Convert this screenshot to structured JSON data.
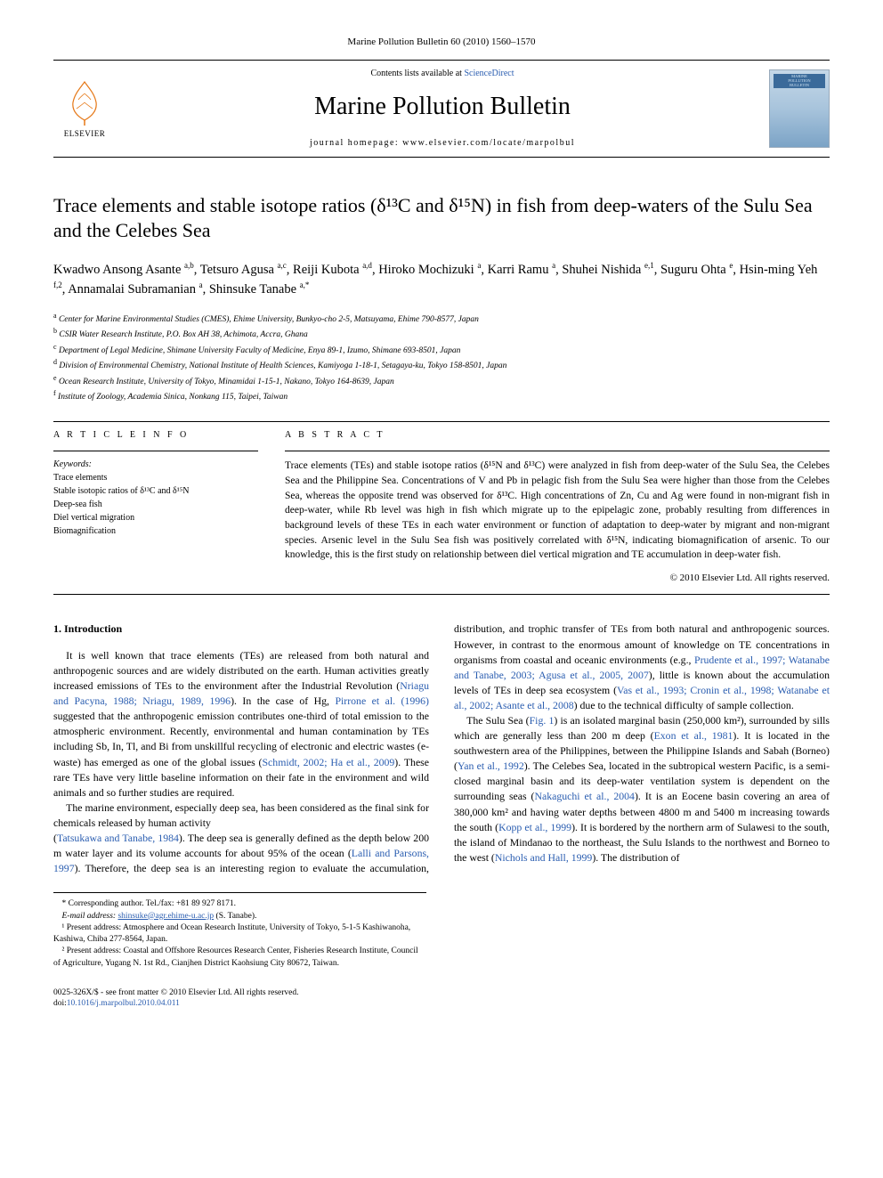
{
  "journal_header": "Marine Pollution Bulletin 60 (2010) 1560–1570",
  "header": {
    "contents_prefix": "Contents lists available at ",
    "contents_link": "ScienceDirect",
    "journal_name": "Marine Pollution Bulletin",
    "homepage": "journal homepage: www.elsevier.com/locate/marpolbul",
    "publisher_name": "ELSEVIER",
    "cover_title_l1": "MARINE",
    "cover_title_l2": "POLLUTION",
    "cover_title_l3": "BULLETIN"
  },
  "title": "Trace elements and stable isotope ratios (δ¹³C and δ¹⁵N) in fish from deep-waters of the Sulu Sea and the Celebes Sea",
  "authors_html": "Kwadwo Ansong Asante <sup>a,b</sup>, Tetsuro Agusa <sup>a,c</sup>, Reiji Kubota <sup>a,d</sup>, Hiroko Mochizuki <sup>a</sup>, Karri Ramu <sup>a</sup>, Shuhei Nishida <sup>e,1</sup>, Suguru Ohta <sup>e</sup>, Hsin-ming Yeh <sup>f,2</sup>, Annamalai Subramanian <sup>a</sup>, Shinsuke Tanabe <sup>a,*</sup>",
  "affiliations": [
    {
      "sup": "a",
      "text": "Center for Marine Environmental Studies (CMES), Ehime University, Bunkyo-cho 2-5, Matsuyama, Ehime 790-8577, Japan"
    },
    {
      "sup": "b",
      "text": "CSIR Water Research Institute, P.O. Box AH 38, Achimota, Accra, Ghana"
    },
    {
      "sup": "c",
      "text": "Department of Legal Medicine, Shimane University Faculty of Medicine, Enya 89-1, Izumo, Shimane 693-8501, Japan"
    },
    {
      "sup": "d",
      "text": "Division of Environmental Chemistry, National Institute of Health Sciences, Kamiyoga 1-18-1, Setagaya-ku, Tokyo 158-8501, Japan"
    },
    {
      "sup": "e",
      "text": "Ocean Research Institute, University of Tokyo, Minamidai 1-15-1, Nakano, Tokyo 164-8639, Japan"
    },
    {
      "sup": "f",
      "text": "Institute of Zoology, Academia Sinica, Nonkang 115, Taipei, Taiwan"
    }
  ],
  "article_info": {
    "header": "A R T I C L E   I N F O",
    "keywords_label": "Keywords:",
    "keywords": [
      "Trace elements",
      "Stable isotopic ratios of δ¹³C and δ¹⁵N",
      "Deep-sea fish",
      "Diel vertical migration",
      "Biomagnification"
    ]
  },
  "abstract": {
    "header": "A B S T R A C T",
    "text": "Trace elements (TEs) and stable isotope ratios (δ¹⁵N and δ¹³C) were analyzed in fish from deep-water of the Sulu Sea, the Celebes Sea and the Philippine Sea. Concentrations of V and Pb in pelagic fish from the Sulu Sea were higher than those from the Celebes Sea, whereas the opposite trend was observed for δ¹³C. High concentrations of Zn, Cu and Ag were found in non-migrant fish in deep-water, while Rb level was high in fish which migrate up to the epipelagic zone, probably resulting from differences in background levels of these TEs in each water environment or function of adaptation to deep-water by migrant and non-migrant species. Arsenic level in the Sulu Sea fish was positively correlated with δ¹⁵N, indicating biomagnification of arsenic. To our knowledge, this is the first study on relationship between diel vertical migration and TE accumulation in deep-water fish.",
    "copyright": "© 2010 Elsevier Ltd. All rights reserved."
  },
  "section_heading": "1. Introduction",
  "body": {
    "p1a": "It is well known that trace elements (TEs) are released from both natural and anthropogenic sources and are widely distributed on the earth. Human activities greatly increased emissions of TEs to the environment after the Industrial Revolution (",
    "r1": "Nriagu and Pacyna, 1988; Nriagu, 1989, 1996",
    "p1b": "). In the case of Hg, ",
    "r2": "Pirrone et al. (1996)",
    "p1c": " suggested that the anthropogenic emission contributes one-third of total emission to the atmospheric environment. Recently, environmental and human contamination by TEs including Sb, In, Tl, and Bi from unskillful recycling of electronic and electric wastes (e-waste) has emerged as one of the global issues (",
    "r3": "Schmidt, 2002; Ha et al., 2009",
    "p1d": "). These rare TEs have very little baseline information on their fate in the environment and wild animals and so further studies are required.",
    "p2": "The marine environment, especially deep sea, has been considered as the final sink for chemicals released by human activity",
    "p3a_open": "(",
    "r4": "Tatsukawa and Tanabe, 1984",
    "p3a": "). The deep sea is generally defined as the depth below 200 m water layer and its volume accounts for about 95% of the ocean (",
    "r5": "Lalli and Parsons, 1997",
    "p3b": "). Therefore, the deep sea is an interesting region to evaluate the accumulation, distribution, and trophic transfer of TEs from both natural and anthropogenic sources. However, in contrast to the enormous amount of knowledge on TE concentrations in organisms from coastal and oceanic environments (e.g., ",
    "r6": "Prudente et al., 1997; Watanabe and Tanabe, 2003; Agusa et al., 2005, 2007",
    "p3c": "), little is known about the accumulation levels of TEs in deep sea ecosystem (",
    "r7": "Vas et al., 1993; Cronin et al., 1998; Watanabe et al., 2002; Asante et al., 2008",
    "p3d": ") due to the technical difficulty of sample collection.",
    "p4a": "The Sulu Sea (",
    "r8": "Fig. 1",
    "p4b": ") is an isolated marginal basin (250,000 km²), surrounded by sills which are generally less than 200 m deep (",
    "r9": "Exon et al., 1981",
    "p4c": "). It is located in the southwestern area of the Philippines, between the Philippine Islands and Sabah (Borneo) (",
    "r10": "Yan et al., 1992",
    "p4d": "). The Celebes Sea, located in the subtropical western Pacific, is a semi-closed marginal basin and its deep-water ventilation system is dependent on the surrounding seas (",
    "r11": "Nakaguchi et al., 2004",
    "p4e": "). It is an Eocene basin covering an area of 380,000 km² and having water depths between 4800 m and 5400 m increasing towards the south (",
    "r12": "Kopp et al., 1999",
    "p4f": "). It is bordered by the northern arm of Sulawesi to the south, the island of Mindanao to the northeast, the Sulu Islands to the northwest and Borneo to the west (",
    "r13": "Nichols and Hall, 1999",
    "p4g": "). The distribution of"
  },
  "footnotes": {
    "corr": "* Corresponding author. Tel./fax: +81 89 927 8171.",
    "email_label": "E-mail address: ",
    "email": "shinsuke@agr.ehime-u.ac.jp",
    "email_suffix": " (S. Tanabe).",
    "n1": "¹ Present address: Atmosphere and Ocean Research Institute, University of Tokyo, 5-1-5 Kashiwanoha, Kashiwa, Chiba 277-8564, Japan.",
    "n2": "² Present address: Coastal and Offshore Resources Research Center, Fisheries Research Institute, Council of Agriculture, Yugang N. 1st Rd., Cianjhen District Kaohsiung City 80672, Taiwan."
  },
  "footer": {
    "issn": "0025-326X/$ - see front matter © 2010 Elsevier Ltd. All rights reserved.",
    "doi_label": "doi:",
    "doi": "10.1016/j.marpolbul.2010.04.011"
  },
  "colors": {
    "link": "#2a5db0",
    "text": "#000000",
    "bg": "#ffffff",
    "cover_border": "#9ab",
    "elsevier_orange": "#e67817"
  }
}
